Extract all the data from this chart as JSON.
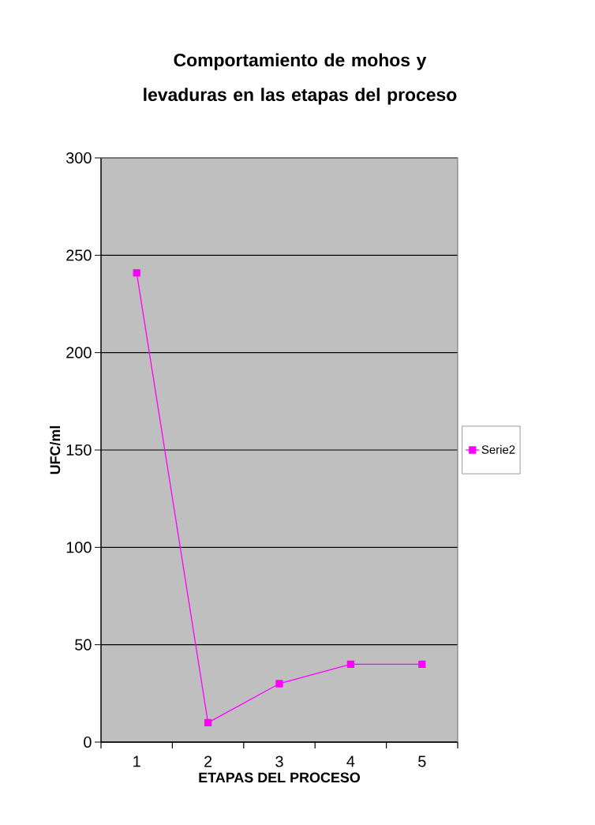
{
  "chart_data": {
    "type": "line",
    "title": "Comportamiento de mohos y levaduras en las etapas del proceso",
    "xlabel": "ETAPAS DEL PROCESO",
    "ylabel": "UFC/ml",
    "categories": [
      "1",
      "2",
      "3",
      "4",
      "5"
    ],
    "series": [
      {
        "name": "Serie2",
        "color": "#ff00ff",
        "values": [
          241,
          10,
          30,
          40,
          40
        ]
      }
    ],
    "ylim": [
      0,
      300
    ],
    "yticks": [
      0,
      50,
      100,
      150,
      200,
      250,
      300
    ],
    "grid": "y",
    "legend": "right",
    "marker": "square"
  }
}
